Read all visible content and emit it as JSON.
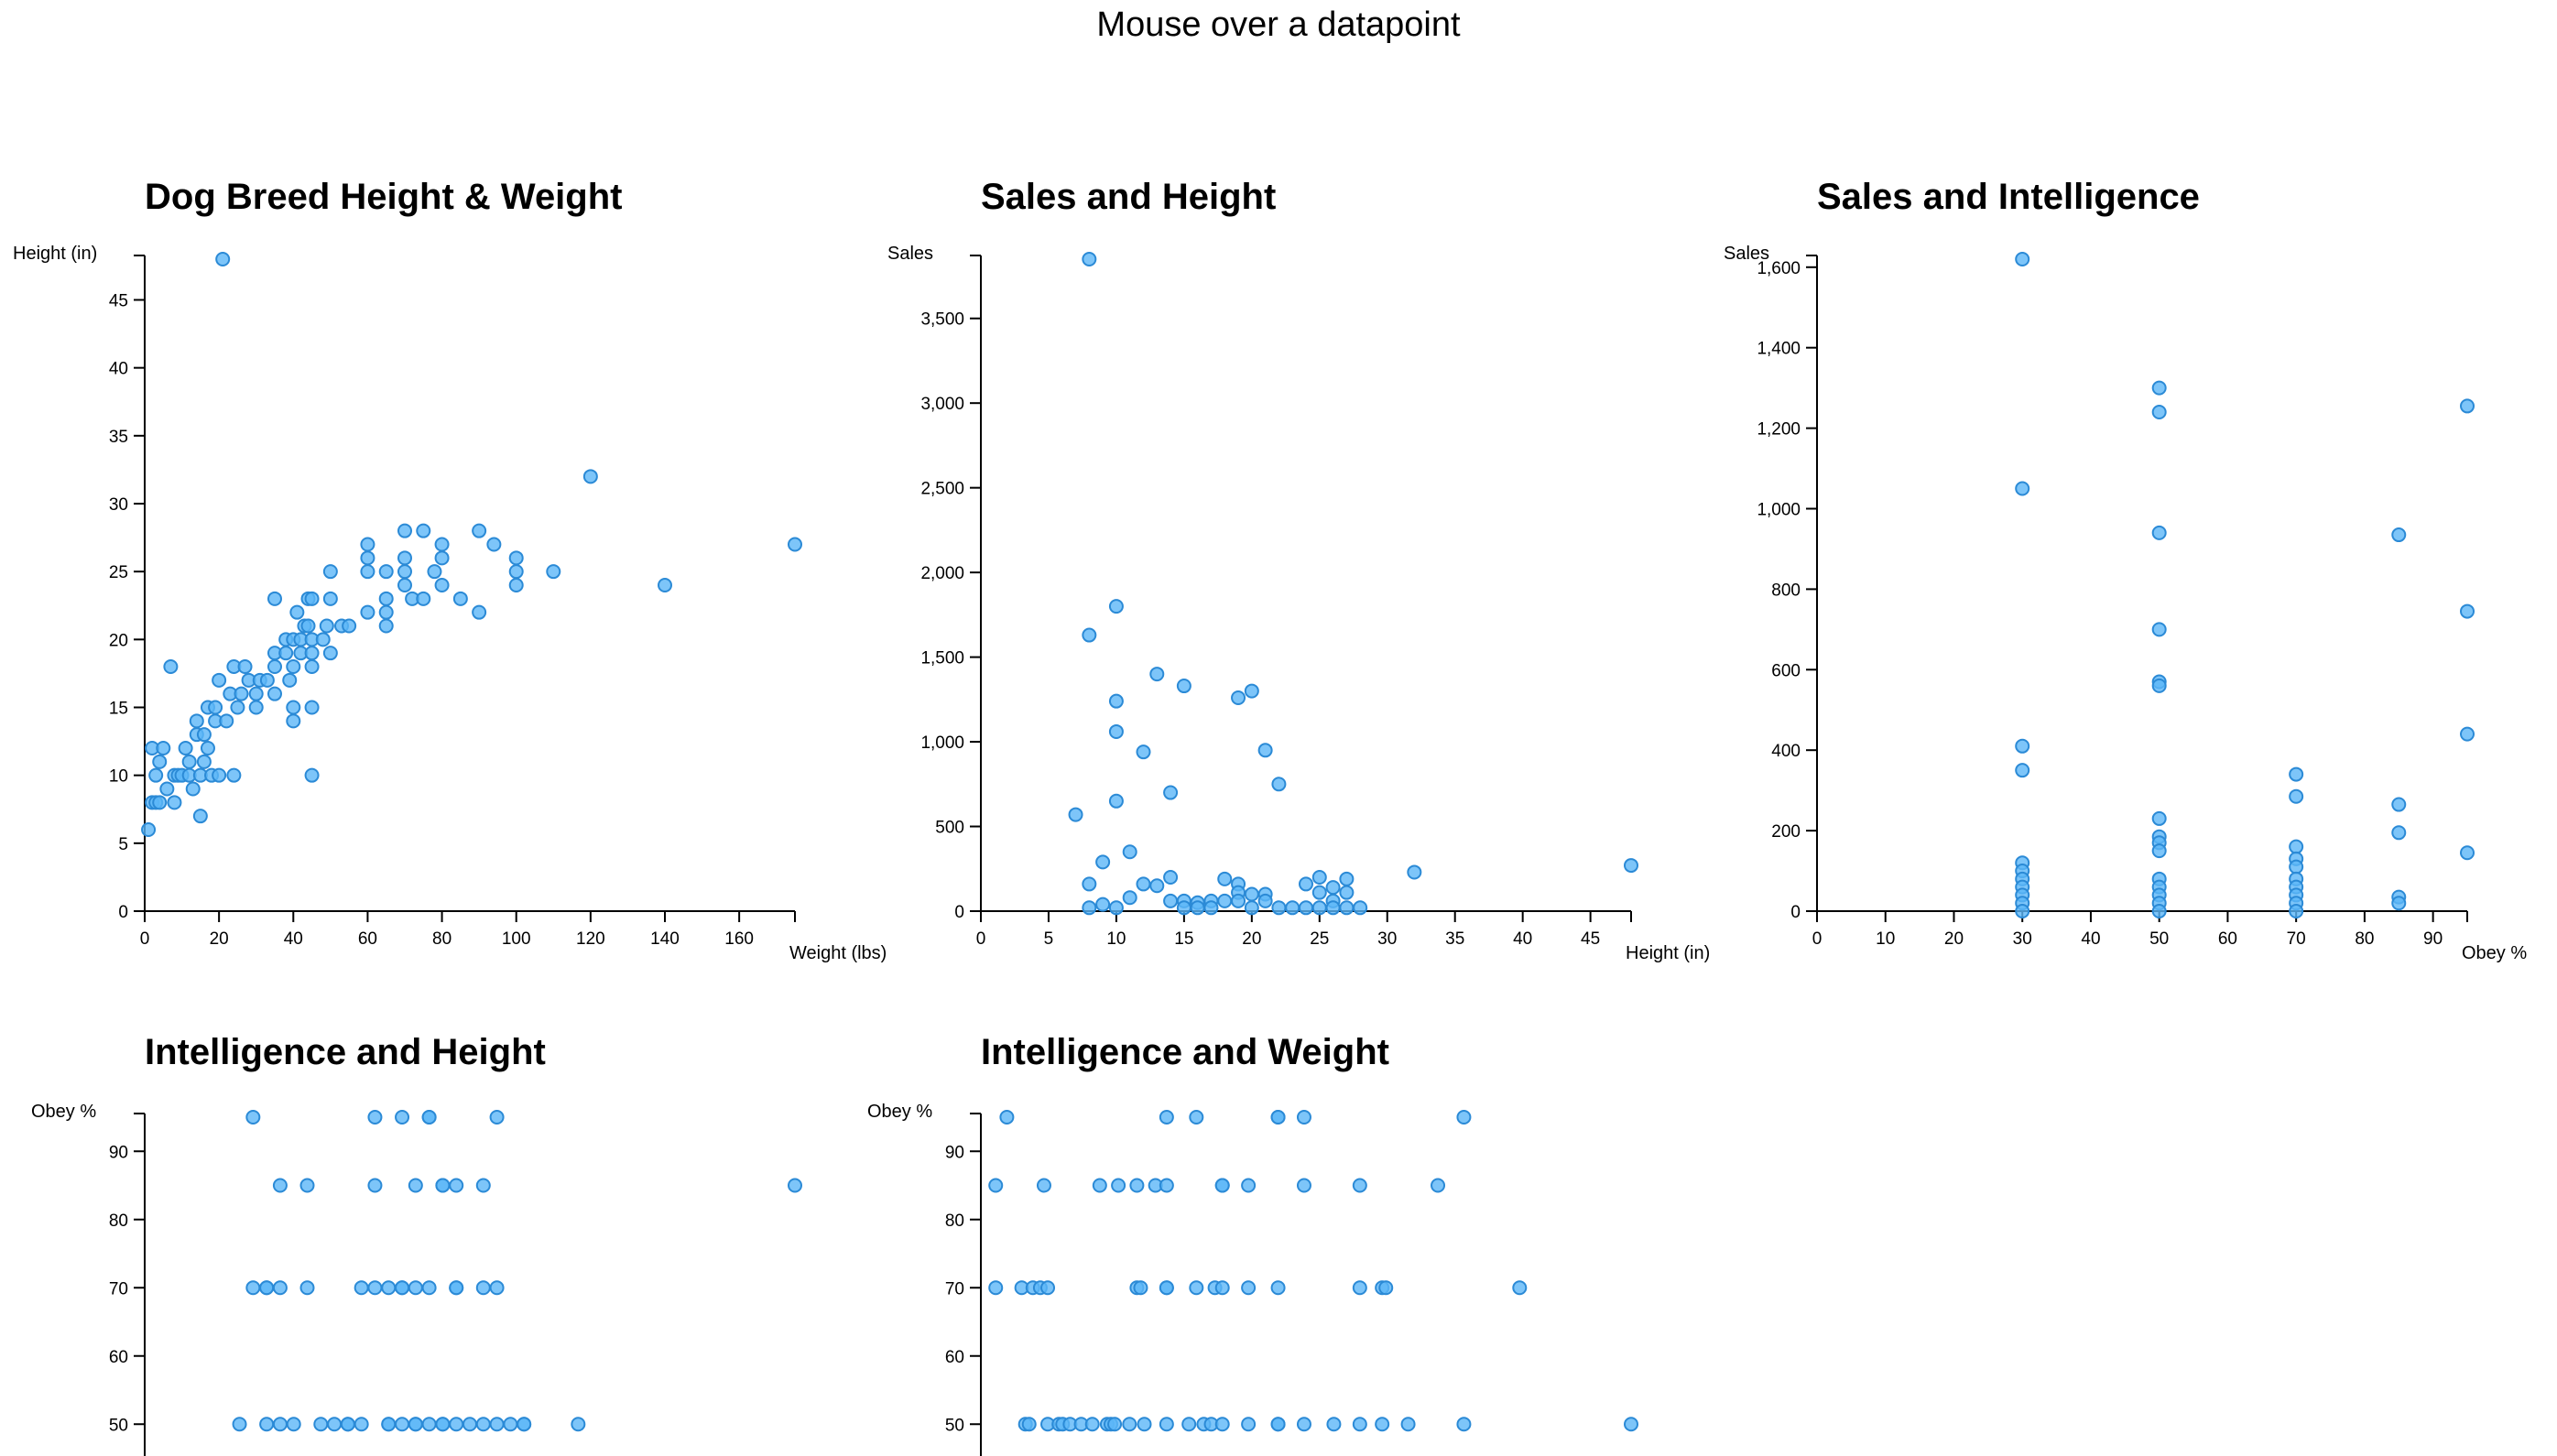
{
  "header": {
    "text": "Mouse over a datapoint"
  },
  "colors": {
    "point_fill": "#5cb7f7",
    "point_stroke": "#2b8ad6"
  },
  "chart_data": [
    {
      "id": "height-weight",
      "type": "scatter",
      "title": "Dog Breed Height & Weight",
      "xlabel": "Weight (lbs)",
      "ylabel": "Height (in)",
      "xlim": [
        0,
        175
      ],
      "ylim": [
        0,
        48
      ],
      "xticks": [
        0,
        20,
        40,
        60,
        80,
        100,
        120,
        140,
        160
      ],
      "yticks": [
        0,
        5,
        10,
        15,
        20,
        25,
        30,
        35,
        40,
        45
      ],
      "points": [
        [
          1,
          6
        ],
        [
          2,
          12
        ],
        [
          2,
          8
        ],
        [
          3,
          8
        ],
        [
          3,
          10
        ],
        [
          4,
          11
        ],
        [
          4,
          8
        ],
        [
          5,
          12
        ],
        [
          6,
          9
        ],
        [
          7,
          18
        ],
        [
          8,
          10
        ],
        [
          8,
          8
        ],
        [
          9,
          10
        ],
        [
          10,
          10
        ],
        [
          11,
          12
        ],
        [
          12,
          11
        ],
        [
          12,
          10
        ],
        [
          13,
          9
        ],
        [
          14,
          13
        ],
        [
          14,
          14
        ],
        [
          15,
          10
        ],
        [
          15,
          7
        ],
        [
          16,
          11
        ],
        [
          16,
          13
        ],
        [
          17,
          12
        ],
        [
          17,
          15
        ],
        [
          18,
          10
        ],
        [
          19,
          14
        ],
        [
          19,
          15
        ],
        [
          20,
          17
        ],
        [
          20,
          10
        ],
        [
          21,
          48
        ],
        [
          22,
          14
        ],
        [
          23,
          16
        ],
        [
          24,
          10
        ],
        [
          24,
          18
        ],
        [
          25,
          15
        ],
        [
          26,
          16
        ],
        [
          27,
          18
        ],
        [
          28,
          17
        ],
        [
          30,
          15
        ],
        [
          30,
          16
        ],
        [
          31,
          17
        ],
        [
          33,
          17
        ],
        [
          35,
          18
        ],
        [
          35,
          19
        ],
        [
          35,
          16
        ],
        [
          35,
          23
        ],
        [
          38,
          20
        ],
        [
          38,
          19
        ],
        [
          39,
          17
        ],
        [
          40,
          14
        ],
        [
          40,
          15
        ],
        [
          40,
          18
        ],
        [
          40,
          20
        ],
        [
          41,
          22
        ],
        [
          42,
          20
        ],
        [
          42,
          19
        ],
        [
          43,
          21
        ],
        [
          44,
          21
        ],
        [
          44,
          23
        ],
        [
          45,
          23
        ],
        [
          45,
          20
        ],
        [
          45,
          18
        ],
        [
          45,
          19
        ],
        [
          45,
          15
        ],
        [
          45,
          10
        ],
        [
          48,
          20
        ],
        [
          49,
          21
        ],
        [
          50,
          19
        ],
        [
          50,
          23
        ],
        [
          50,
          25
        ],
        [
          53,
          21
        ],
        [
          55,
          21
        ],
        [
          60,
          22
        ],
        [
          60,
          25
        ],
        [
          60,
          26
        ],
        [
          60,
          27
        ],
        [
          65,
          21
        ],
        [
          65,
          22
        ],
        [
          65,
          25
        ],
        [
          65,
          23
        ],
        [
          70,
          24
        ],
        [
          70,
          25
        ],
        [
          70,
          26
        ],
        [
          70,
          28
        ],
        [
          72,
          23
        ],
        [
          75,
          23
        ],
        [
          75,
          28
        ],
        [
          78,
          25
        ],
        [
          80,
          24
        ],
        [
          80,
          26
        ],
        [
          80,
          27
        ],
        [
          85,
          23
        ],
        [
          90,
          22
        ],
        [
          90,
          28
        ],
        [
          94,
          27
        ],
        [
          100,
          24
        ],
        [
          100,
          25
        ],
        [
          100,
          26
        ],
        [
          110,
          25
        ],
        [
          120,
          32
        ],
        [
          140,
          24
        ],
        [
          175,
          27
        ]
      ]
    },
    {
      "id": "sales-height",
      "type": "scatter",
      "title": "Sales and Height",
      "xlabel": "Height (in)",
      "ylabel": "Sales",
      "xlim": [
        0,
        48
      ],
      "ylim": [
        0,
        3850
      ],
      "xticks": [
        0,
        5,
        10,
        15,
        20,
        25,
        30,
        35,
        40,
        45
      ],
      "yticks": [
        0,
        500,
        1000,
        1500,
        2000,
        2500,
        3000,
        3500
      ],
      "ytick_labels": [
        "0",
        "500",
        "1,000",
        "1,500",
        "2,000",
        "2,500",
        "3,000",
        "3,500"
      ],
      "points": [
        [
          8,
          3850
        ],
        [
          7,
          570
        ],
        [
          8,
          1630
        ],
        [
          8,
          160
        ],
        [
          8,
          20
        ],
        [
          9,
          40
        ],
        [
          9,
          290
        ],
        [
          10,
          1800
        ],
        [
          10,
          1060
        ],
        [
          10,
          650
        ],
        [
          10,
          20
        ],
        [
          10,
          1240
        ],
        [
          11,
          350
        ],
        [
          11,
          80
        ],
        [
          12,
          940
        ],
        [
          12,
          160
        ],
        [
          13,
          1400
        ],
        [
          13,
          150
        ],
        [
          14,
          200
        ],
        [
          14,
          60
        ],
        [
          14,
          700
        ],
        [
          15,
          1330
        ],
        [
          15,
          60
        ],
        [
          15,
          20
        ],
        [
          16,
          50
        ],
        [
          16,
          20
        ],
        [
          17,
          60
        ],
        [
          17,
          20
        ],
        [
          18,
          190
        ],
        [
          18,
          60
        ],
        [
          19,
          1260
        ],
        [
          19,
          160
        ],
        [
          19,
          110
        ],
        [
          19,
          60
        ],
        [
          20,
          1300
        ],
        [
          20,
          100
        ],
        [
          20,
          20
        ],
        [
          21,
          950
        ],
        [
          21,
          100
        ],
        [
          21,
          60
        ],
        [
          22,
          750
        ],
        [
          22,
          20
        ],
        [
          23,
          20
        ],
        [
          24,
          160
        ],
        [
          24,
          20
        ],
        [
          25,
          200
        ],
        [
          25,
          110
        ],
        [
          25,
          20
        ],
        [
          26,
          140
        ],
        [
          26,
          60
        ],
        [
          26,
          20
        ],
        [
          27,
          190
        ],
        [
          27,
          20
        ],
        [
          27,
          110
        ],
        [
          28,
          20
        ],
        [
          32,
          230
        ],
        [
          48,
          270
        ]
      ]
    },
    {
      "id": "sales-intelligence",
      "type": "scatter",
      "title": "Sales and Intelligence",
      "xlabel": "Obey %",
      "ylabel": "Sales",
      "xlim": [
        0,
        95
      ],
      "ylim": [
        0,
        1620
      ],
      "xticks": [
        0,
        10,
        20,
        30,
        40,
        50,
        60,
        70,
        80,
        90
      ],
      "yticks": [
        0,
        200,
        400,
        600,
        800,
        1000,
        1200,
        1400,
        1600
      ],
      "ytick_labels": [
        "0",
        "200",
        "400",
        "600",
        "800",
        "1,000",
        "1,200",
        "1,400",
        "1,600"
      ],
      "points": [
        [
          30,
          1620
        ],
        [
          30,
          1050
        ],
        [
          30,
          410
        ],
        [
          30,
          350
        ],
        [
          30,
          120
        ],
        [
          30,
          100
        ],
        [
          30,
          80
        ],
        [
          30,
          60
        ],
        [
          30,
          40
        ],
        [
          30,
          20
        ],
        [
          30,
          0
        ],
        [
          50,
          1300
        ],
        [
          50,
          1240
        ],
        [
          50,
          940
        ],
        [
          50,
          700
        ],
        [
          50,
          570
        ],
        [
          50,
          560
        ],
        [
          50,
          230
        ],
        [
          50,
          185
        ],
        [
          50,
          170
        ],
        [
          50,
          150
        ],
        [
          50,
          80
        ],
        [
          50,
          60
        ],
        [
          50,
          40
        ],
        [
          50,
          20
        ],
        [
          50,
          0
        ],
        [
          70,
          340
        ],
        [
          70,
          285
        ],
        [
          70,
          160
        ],
        [
          70,
          130
        ],
        [
          70,
          110
        ],
        [
          70,
          80
        ],
        [
          70,
          60
        ],
        [
          70,
          40
        ],
        [
          70,
          20
        ],
        [
          70,
          0
        ],
        [
          85,
          935
        ],
        [
          85,
          265
        ],
        [
          85,
          195
        ],
        [
          85,
          35
        ],
        [
          85,
          20
        ],
        [
          95,
          1255
        ],
        [
          95,
          745
        ],
        [
          95,
          440
        ],
        [
          95,
          145
        ]
      ]
    },
    {
      "id": "intelligence-height",
      "type": "scatter",
      "title": "Intelligence and Height",
      "xlabel": "",
      "ylabel": "Obey %",
      "xlim": [
        0,
        48
      ],
      "ylim": [
        40,
        95
      ],
      "xticks": [],
      "yticks": [
        50,
        60,
        70,
        80,
        90
      ],
      "points": [
        [
          8,
          95
        ],
        [
          17,
          95
        ],
        [
          19,
          95
        ],
        [
          21,
          95
        ],
        [
          21,
          95
        ],
        [
          26,
          95
        ],
        [
          10,
          85
        ],
        [
          12,
          85
        ],
        [
          17,
          85
        ],
        [
          20,
          85
        ],
        [
          22,
          85
        ],
        [
          22,
          85
        ],
        [
          23,
          85
        ],
        [
          25,
          85
        ],
        [
          48,
          85
        ],
        [
          8,
          70
        ],
        [
          9,
          70
        ],
        [
          9,
          70
        ],
        [
          10,
          70
        ],
        [
          12,
          70
        ],
        [
          16,
          70
        ],
        [
          17,
          70
        ],
        [
          18,
          70
        ],
        [
          19,
          70
        ],
        [
          19,
          70
        ],
        [
          20,
          70
        ],
        [
          21,
          70
        ],
        [
          23,
          70
        ],
        [
          23,
          70
        ],
        [
          25,
          70
        ],
        [
          26,
          70
        ],
        [
          7,
          50
        ],
        [
          9,
          50
        ],
        [
          10,
          50
        ],
        [
          11,
          50
        ],
        [
          13,
          50
        ],
        [
          14,
          50
        ],
        [
          15,
          50
        ],
        [
          15,
          50
        ],
        [
          16,
          50
        ],
        [
          18,
          50
        ],
        [
          18,
          50
        ],
        [
          19,
          50
        ],
        [
          20,
          50
        ],
        [
          20,
          50
        ],
        [
          21,
          50
        ],
        [
          22,
          50
        ],
        [
          22,
          50
        ],
        [
          23,
          50
        ],
        [
          24,
          50
        ],
        [
          25,
          50
        ],
        [
          26,
          50
        ],
        [
          27,
          50
        ],
        [
          28,
          50
        ],
        [
          28,
          50
        ],
        [
          32,
          50
        ]
      ]
    },
    {
      "id": "intelligence-weight",
      "type": "scatter",
      "title": "Intelligence and Weight",
      "xlabel": "",
      "ylabel": "Obey %",
      "xlim": [
        0,
        175
      ],
      "ylim": [
        40,
        95
      ],
      "xticks": [],
      "yticks": [
        50,
        60,
        70,
        80,
        90
      ],
      "points": [
        [
          7,
          95
        ],
        [
          50,
          95
        ],
        [
          58,
          95
        ],
        [
          80,
          95
        ],
        [
          80,
          95
        ],
        [
          87,
          95
        ],
        [
          130,
          95
        ],
        [
          4,
          85
        ],
        [
          17,
          85
        ],
        [
          32,
          85
        ],
        [
          37,
          85
        ],
        [
          42,
          85
        ],
        [
          47,
          85
        ],
        [
          50,
          85
        ],
        [
          65,
          85
        ],
        [
          65,
          85
        ],
        [
          72,
          85
        ],
        [
          87,
          85
        ],
        [
          102,
          85
        ],
        [
          123,
          85
        ],
        [
          4,
          70
        ],
        [
          11,
          70
        ],
        [
          14,
          70
        ],
        [
          16,
          70
        ],
        [
          18,
          70
        ],
        [
          42,
          70
        ],
        [
          43,
          70
        ],
        [
          50,
          70
        ],
        [
          50,
          70
        ],
        [
          58,
          70
        ],
        [
          63,
          70
        ],
        [
          65,
          70
        ],
        [
          72,
          70
        ],
        [
          80,
          70
        ],
        [
          102,
          70
        ],
        [
          108,
          70
        ],
        [
          109,
          70
        ],
        [
          145,
          70
        ],
        [
          12,
          50
        ],
        [
          13,
          50
        ],
        [
          18,
          50
        ],
        [
          21,
          50
        ],
        [
          22,
          50
        ],
        [
          24,
          50
        ],
        [
          27,
          50
        ],
        [
          30,
          50
        ],
        [
          34,
          50
        ],
        [
          35,
          50
        ],
        [
          36,
          50
        ],
        [
          40,
          50
        ],
        [
          44,
          50
        ],
        [
          50,
          50
        ],
        [
          56,
          50
        ],
        [
          60,
          50
        ],
        [
          62,
          50
        ],
        [
          65,
          50
        ],
        [
          72,
          50
        ],
        [
          80,
          50
        ],
        [
          80,
          50
        ],
        [
          87,
          50
        ],
        [
          95,
          50
        ],
        [
          102,
          50
        ],
        [
          108,
          50
        ],
        [
          115,
          50
        ],
        [
          130,
          50
        ],
        [
          175,
          50
        ]
      ]
    }
  ]
}
